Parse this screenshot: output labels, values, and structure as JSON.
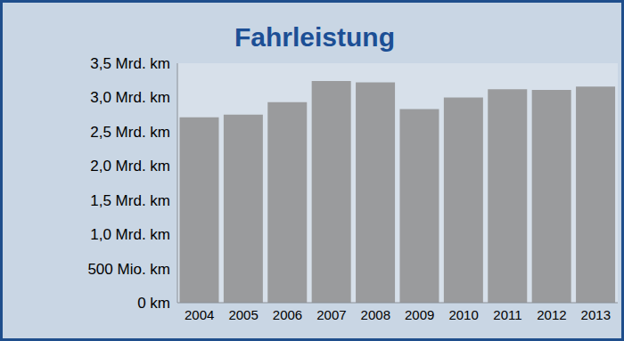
{
  "chart_data": {
    "type": "bar",
    "title": "Fahrleistung",
    "categories": [
      "2004",
      "2005",
      "2006",
      "2007",
      "2008",
      "2009",
      "2010",
      "2011",
      "2012",
      "2013"
    ],
    "values": [
      2.71,
      2.75,
      2.93,
      3.24,
      3.22,
      2.83,
      3.0,
      3.12,
      3.11,
      3.16
    ],
    "color": "#9a9b9d",
    "ylim": [
      0,
      3.5
    ],
    "yticks": [
      {
        "value": 0,
        "label": "0 km"
      },
      {
        "value": 0.5,
        "label": "500 Mio. km"
      },
      {
        "value": 1,
        "label": "1,0 Mrd. km"
      },
      {
        "value": 1.5,
        "label": "1,5 Mrd. km"
      },
      {
        "value": 2,
        "label": "2,0 Mrd. km"
      },
      {
        "value": 2.5,
        "label": "2,5 Mrd. km"
      },
      {
        "value": 3,
        "label": "3,0 Mrd. km"
      },
      {
        "value": 3.5,
        "label": "3,5 Mrd. km"
      }
    ],
    "grid": false
  }
}
